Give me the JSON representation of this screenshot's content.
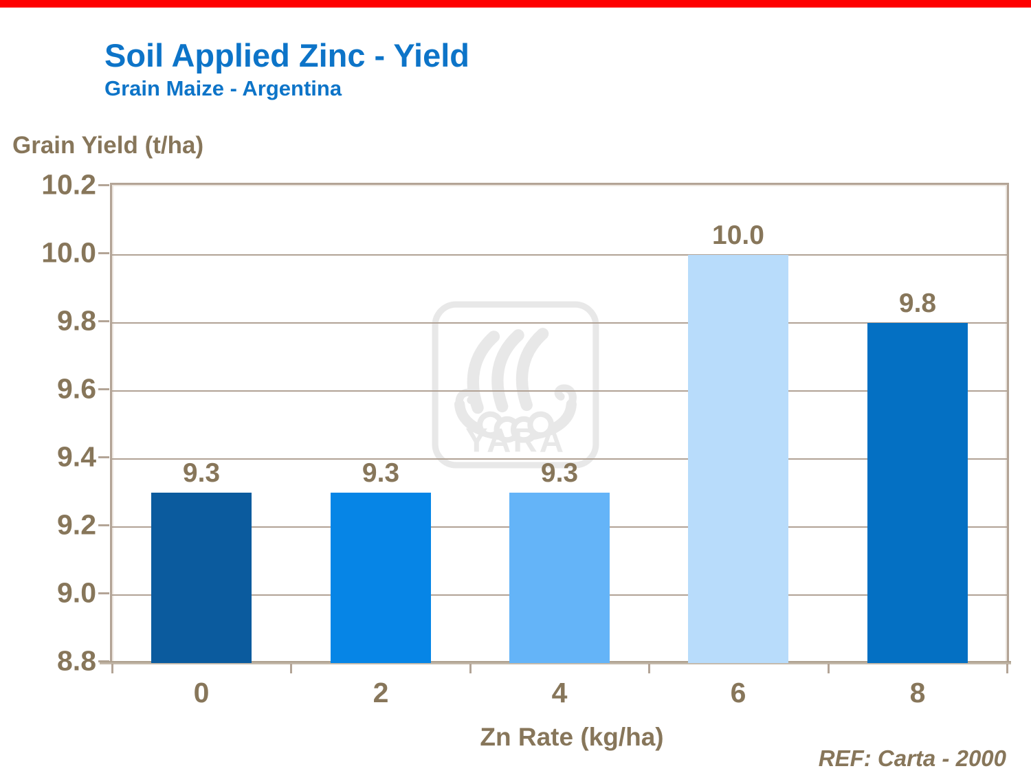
{
  "header": {
    "title": "Soil Applied Zinc - Yield",
    "subtitle": "Grain Maize - Argentina"
  },
  "watermark": {
    "text": "YARA"
  },
  "footer": {
    "ref_text": "REF: Carta - 2000"
  },
  "colors": {
    "top_accent_bar": "#fe0000",
    "title_blue": "#0d74c8",
    "label_taupe": "#87765a",
    "gridline": "#b1a295",
    "axis_border": "#b3a496",
    "watermark_gray": "#e8e8e8",
    "plot_background": "#ffffff"
  },
  "chart_data": {
    "type": "bar",
    "title": "Soil Applied Zinc - Yield",
    "subtitle": "Grain Maize - Argentina",
    "xlabel": "Zn Rate (kg/ha)",
    "ylabel": "Grain Yield (t/ha)",
    "categories": [
      "0",
      "2",
      "4",
      "6",
      "8"
    ],
    "values": [
      9.3,
      9.3,
      9.3,
      10.0,
      9.8
    ],
    "bar_labels": [
      "9.3",
      "9.3",
      "9.3",
      "10.0",
      "9.8"
    ],
    "bar_colors": [
      "#0b5b9e",
      "#0685e6",
      "#64b4f8",
      "#b8dcfb",
      "#0470c3"
    ],
    "ylim": [
      8.8,
      10.2
    ],
    "ytick_step": 0.2,
    "ytick_labels": [
      "8.8",
      "9.0",
      "9.2",
      "9.4",
      "9.6",
      "9.8",
      "10.0",
      "10.2"
    ],
    "grid": true,
    "legend": "none",
    "annotation": "REF: Carta - 2000"
  }
}
